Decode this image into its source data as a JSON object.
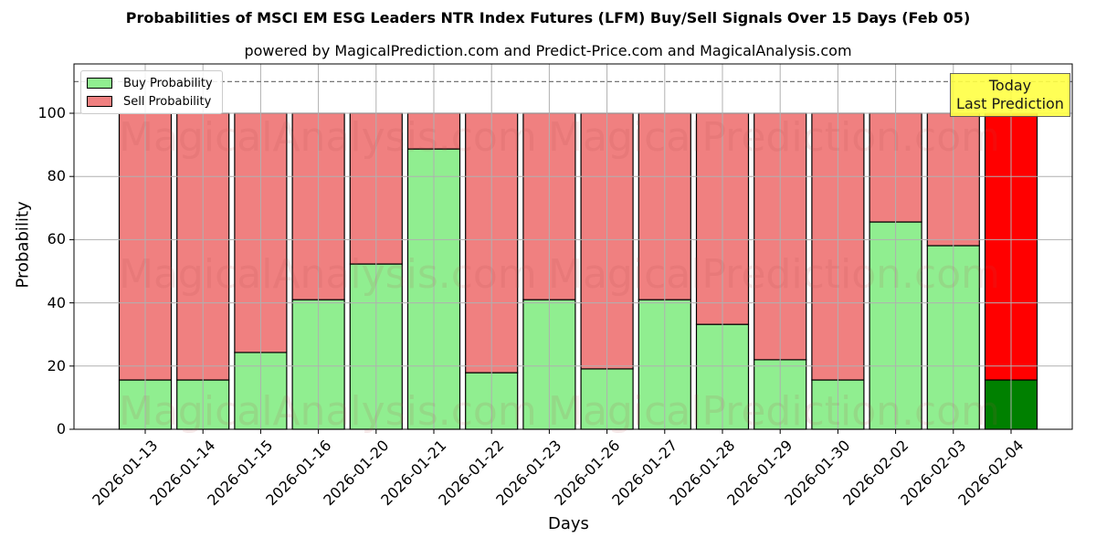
{
  "title": "Probabilities of MSCI EM ESG Leaders NTR Index Futures (LFM) Buy/Sell Signals Over 15 Days (Feb 05)",
  "subtitle": "powered by MagicalPrediction.com and Predict-Price.com and MagicalAnalysis.com",
  "legend": {
    "buy": "Buy Probability",
    "sell": "Sell Probability"
  },
  "annotation": {
    "line1": "Today",
    "line2": "Last Prediction"
  },
  "watermarks": [
    "MagicalAnalysis.com",
    "MagicalPrediction.com"
  ],
  "colors": {
    "buy": "#90ee90",
    "sell": "#f08080",
    "today_buy": "#008000",
    "today_sell": "#ff0000",
    "annotation_bg": "#ffff44"
  },
  "chart_data": {
    "type": "bar",
    "stacked": true,
    "title": "Probabilities of MSCI EM ESG Leaders NTR Index Futures (LFM) Buy/Sell Signals Over 15 Days (Feb 05)",
    "subtitle": "powered by MagicalPrediction.com and Predict-Price.com and MagicalAnalysis.com",
    "xlabel": "Days",
    "ylabel": "Probability",
    "ylim": [
      0,
      115
    ],
    "yticks": [
      0,
      20,
      40,
      60,
      80,
      100
    ],
    "grid": true,
    "legend_position": "upper left",
    "reference_line": {
      "y": 110,
      "style": "dashed"
    },
    "categories": [
      "2026-01-13",
      "2026-01-14",
      "2026-01-15",
      "2026-01-16",
      "2026-01-20",
      "2026-01-21",
      "2026-01-22",
      "2026-01-23",
      "2026-01-26",
      "2026-01-27",
      "2026-01-28",
      "2026-01-29",
      "2026-01-30",
      "2026-02-02",
      "2026-02-03",
      "2026-02-04"
    ],
    "series": [
      {
        "name": "Buy Probability",
        "values": [
          15.6,
          15.6,
          24.3,
          41.0,
          52.3,
          88.7,
          17.9,
          41.0,
          19.1,
          41.0,
          33.2,
          22.0,
          15.6,
          65.6,
          58.1,
          15.6
        ]
      },
      {
        "name": "Sell Probability",
        "values": [
          84.4,
          84.4,
          75.7,
          59.0,
          47.7,
          11.3,
          82.1,
          59.0,
          80.9,
          59.0,
          66.8,
          78.0,
          84.4,
          34.4,
          41.9,
          84.4
        ]
      }
    ],
    "highlight": {
      "category": "2026-02-04",
      "label": "Today Last Prediction"
    }
  }
}
